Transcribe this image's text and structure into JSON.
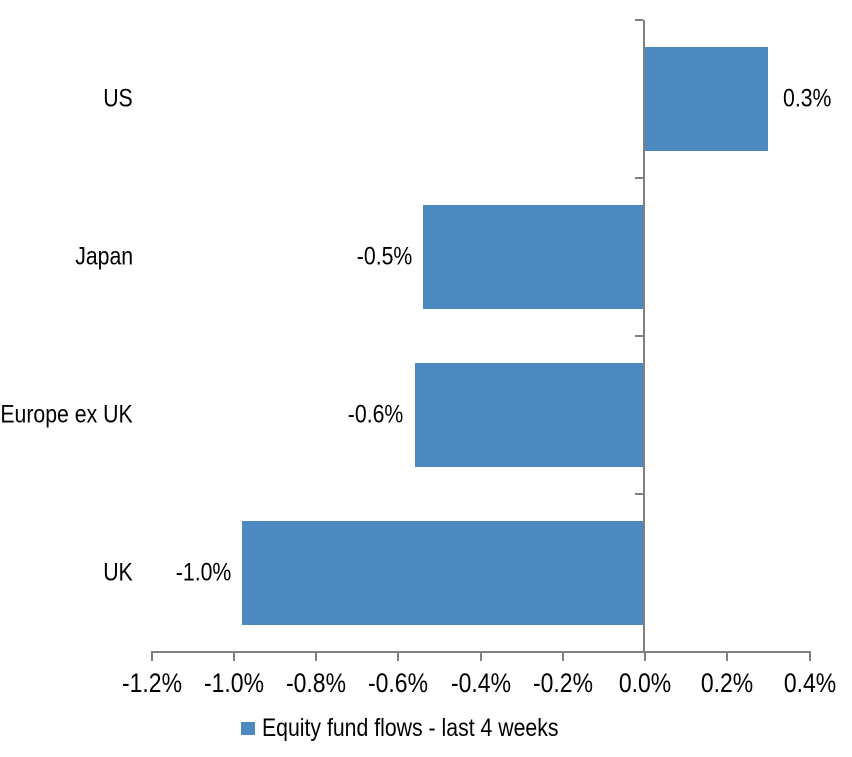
{
  "chart_data": {
    "type": "bar",
    "orientation": "horizontal",
    "title": "",
    "xlabel": "",
    "ylabel": "",
    "categories": [
      "US",
      "Japan",
      "Europe ex UK",
      "UK"
    ],
    "values": [
      0.3,
      -0.54,
      -0.56,
      -0.98
    ],
    "data_labels": [
      "0.3%",
      "-0.5%",
      "-0.6%",
      "-1.0%"
    ],
    "x_ticks": [
      -1.2,
      -1.0,
      -0.8,
      -0.6,
      -0.4,
      -0.2,
      0.0,
      0.2,
      0.4
    ],
    "x_tick_labels": [
      "-1.2%",
      "-1.0%",
      "-0.8%",
      "-0.6%",
      "-0.4%",
      "-0.2%",
      "0.0%",
      "0.2%",
      "0.4%"
    ],
    "xlim": [
      -1.2,
      0.4
    ],
    "grid": false,
    "legend_position": "bottom-center",
    "legend": "Equity fund flows - last 4 weeks",
    "bar_color": "#4D89C1",
    "axis_color": "#808080",
    "text_color": "#000000",
    "background_color": "#FFFFFF"
  }
}
